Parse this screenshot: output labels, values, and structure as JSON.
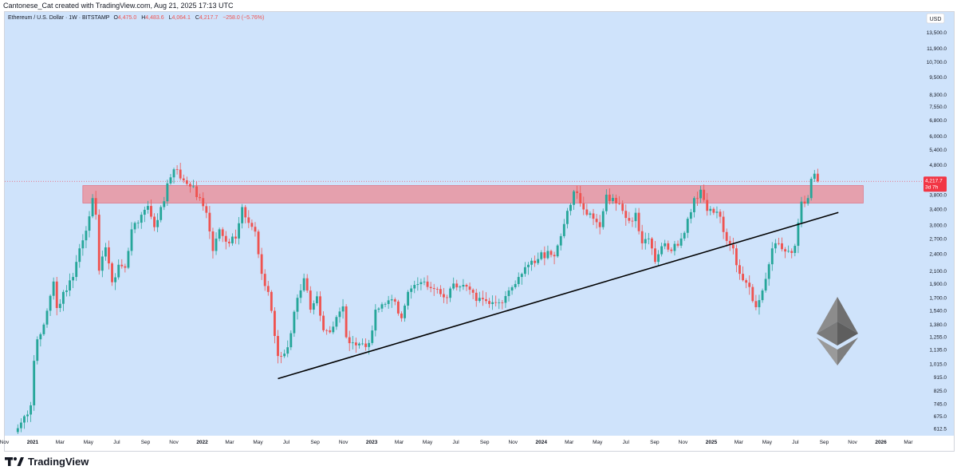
{
  "header": {
    "credit": "Cantonese_Cat created with TradingView.com, Aug 21, 2025 17:13 UTC"
  },
  "footer": {
    "brand": "TradingView"
  },
  "colors": {
    "background": "#cfe3fb",
    "up": "#26a69a",
    "down": "#ef5350",
    "zone": "#e9949f",
    "trendline": "#000000",
    "price_tag": "#f23645"
  },
  "chart_data": {
    "type": "candlestick",
    "symbol": "Ethereum / U.S. Dollar · 1W · BITSTAMP",
    "ohlc": {
      "o_label": "O",
      "o": "4,475.0",
      "h_label": "H",
      "h": "4,483.6",
      "l_label": "L",
      "l": "4,064.1",
      "c_label": "C",
      "c": "4,217.7",
      "change": "−258.0 (−5.76%)"
    },
    "currency": "USD",
    "price_tag": {
      "value": "4,217.7",
      "countdown": "3d 7h",
      "price": 4217.7
    },
    "y_scale": "log",
    "y_range": [
      580,
      15800
    ],
    "y_ticks": [
      "13,500.0",
      "11,900.0",
      "10,700.0",
      "9,500.0",
      "8,300.0",
      "7,550.0",
      "6,800.0",
      "6,000.0",
      "5,400.0",
      "4,800.0",
      "3,800.0",
      "3,400.0",
      "3,000.0",
      "2,700.0",
      "2,400.0",
      "2,100.0",
      "1,900.0",
      "1,700.0",
      "1,540.0",
      "1,380.0",
      "1,255.0",
      "1,135.0",
      "1,015.0",
      "915.0",
      "825.0",
      "745.0",
      "675.0",
      "612.5"
    ],
    "x_ticks": [
      "Nov",
      "2021",
      "Mar",
      "May",
      "Jul",
      "Sep",
      "Nov",
      "2022",
      "Mar",
      "May",
      "Jul",
      "Sep",
      "Nov",
      "2023",
      "Mar",
      "May",
      "Jul",
      "Sep",
      "Nov",
      "2024",
      "Mar",
      "May",
      "Jul",
      "Sep",
      "Nov",
      "2025",
      "Mar",
      "May",
      "Jul",
      "Sep",
      "Nov",
      "2026",
      "Mar"
    ],
    "x_start": "2020-11-02",
    "x_end": "2026-04-01",
    "resistance_zone": {
      "top": 4080,
      "bottom": 3560,
      "start": "2021-04-19",
      "end": "2025-11-24"
    },
    "trendline": {
      "start_date": "2022-06-13",
      "start_price": 905,
      "end_date": "2025-08-11",
      "end_price": 3130
    },
    "weekly_close_anchors": [
      [
        "2020-11-30",
        615
      ],
      [
        "2020-12-28",
        735
      ],
      [
        "2021-01-04",
        1040
      ],
      [
        "2021-01-11",
        1230
      ],
      [
        "2021-01-25",
        1380
      ],
      [
        "2021-02-15",
        1930
      ],
      [
        "2021-02-22",
        1570
      ],
      [
        "2021-03-08",
        1780
      ],
      [
        "2021-03-15",
        1800
      ],
      [
        "2021-03-29",
        2000
      ],
      [
        "2021-04-12",
        2500
      ],
      [
        "2021-04-26",
        2870
      ],
      [
        "2021-05-10",
        3700
      ],
      [
        "2021-05-17",
        3250
      ],
      [
        "2021-05-24",
        2100
      ],
      [
        "2021-06-07",
        2520
      ],
      [
        "2021-06-21",
        1920
      ],
      [
        "2021-07-05",
        2200
      ],
      [
        "2021-07-19",
        2150
      ],
      [
        "2021-08-02",
        2900
      ],
      [
        "2021-08-23",
        3250
      ],
      [
        "2021-09-06",
        3480
      ],
      [
        "2021-09-20",
        2950
      ],
      [
        "2021-10-04",
        3450
      ],
      [
        "2021-10-25",
        4350
      ],
      [
        "2021-11-08",
        4620
      ],
      [
        "2021-11-22",
        4250
      ],
      [
        "2021-12-06",
        4050
      ],
      [
        "2021-12-27",
        3700
      ],
      [
        "2022-01-10",
        3300
      ],
      [
        "2022-01-24",
        2450
      ],
      [
        "2022-02-07",
        2900
      ],
      [
        "2022-02-28",
        2600
      ],
      [
        "2022-03-14",
        2700
      ],
      [
        "2022-03-28",
        3450
      ],
      [
        "2022-04-11",
        3050
      ],
      [
        "2022-04-25",
        2850
      ],
      [
        "2022-05-09",
        2050
      ],
      [
        "2022-05-23",
        1780
      ],
      [
        "2022-06-13",
        1080
      ],
      [
        "2022-06-27",
        1100
      ],
      [
        "2022-07-11",
        1290
      ],
      [
        "2022-07-25",
        1700
      ],
      [
        "2022-08-08",
        1980
      ],
      [
        "2022-08-22",
        1550
      ],
      [
        "2022-09-05",
        1720
      ],
      [
        "2022-09-19",
        1320
      ],
      [
        "2022-10-03",
        1300
      ],
      [
        "2022-10-31",
        1590
      ],
      [
        "2022-11-07",
        1250
      ],
      [
        "2022-11-21",
        1200
      ],
      [
        "2022-12-12",
        1190
      ],
      [
        "2022-12-26",
        1195
      ],
      [
        "2023-01-09",
        1550
      ],
      [
        "2023-01-30",
        1620
      ],
      [
        "2023-02-13",
        1680
      ],
      [
        "2023-03-06",
        1450
      ],
      [
        "2023-03-20",
        1780
      ],
      [
        "2023-04-03",
        1880
      ],
      [
        "2023-04-17",
        1920
      ],
      [
        "2023-05-01",
        1850
      ],
      [
        "2023-05-22",
        1820
      ],
      [
        "2023-06-12",
        1700
      ],
      [
        "2023-06-26",
        1900
      ],
      [
        "2023-07-17",
        1880
      ],
      [
        "2023-08-14",
        1660
      ],
      [
        "2023-09-11",
        1620
      ],
      [
        "2023-10-02",
        1640
      ],
      [
        "2023-10-23",
        1800
      ],
      [
        "2023-11-13",
        2000
      ],
      [
        "2023-12-04",
        2200
      ],
      [
        "2023-12-25",
        2300
      ],
      [
        "2024-01-15",
        2450
      ],
      [
        "2024-01-29",
        2350
      ],
      [
        "2024-02-12",
        2750
      ],
      [
        "2024-02-26",
        3350
      ],
      [
        "2024-03-11",
        3900
      ],
      [
        "2024-03-25",
        3550
      ],
      [
        "2024-04-08",
        3250
      ],
      [
        "2024-04-22",
        3150
      ],
      [
        "2024-05-06",
        2950
      ],
      [
        "2024-05-20",
        3800
      ],
      [
        "2024-06-10",
        3550
      ],
      [
        "2024-06-24",
        3350
      ],
      [
        "2024-07-08",
        3100
      ],
      [
        "2024-07-22",
        3300
      ],
      [
        "2024-08-05",
        2600
      ],
      [
        "2024-08-19",
        2700
      ],
      [
        "2024-09-02",
        2250
      ],
      [
        "2024-09-23",
        2600
      ],
      [
        "2024-10-07",
        2450
      ],
      [
        "2024-10-28",
        2700
      ],
      [
        "2024-11-11",
        3150
      ],
      [
        "2024-11-25",
        3700
      ],
      [
        "2024-12-09",
        3950
      ],
      [
        "2024-12-23",
        3350
      ],
      [
        "2025-01-06",
        3300
      ],
      [
        "2025-01-20",
        3200
      ],
      [
        "2025-02-03",
        2650
      ],
      [
        "2025-02-17",
        2500
      ],
      [
        "2025-03-03",
        2050
      ],
      [
        "2025-03-24",
        1850
      ],
      [
        "2025-04-07",
        1580
      ],
      [
        "2025-04-21",
        1800
      ],
      [
        "2025-05-12",
        2500
      ],
      [
        "2025-05-26",
        2600
      ],
      [
        "2025-06-16",
        2450
      ],
      [
        "2025-06-30",
        2550
      ],
      [
        "2025-07-14",
        3600
      ],
      [
        "2025-07-28",
        3700
      ],
      [
        "2025-08-04",
        4300
      ],
      [
        "2025-08-11",
        4475
      ],
      [
        "2025-08-18",
        4217.7
      ]
    ]
  }
}
